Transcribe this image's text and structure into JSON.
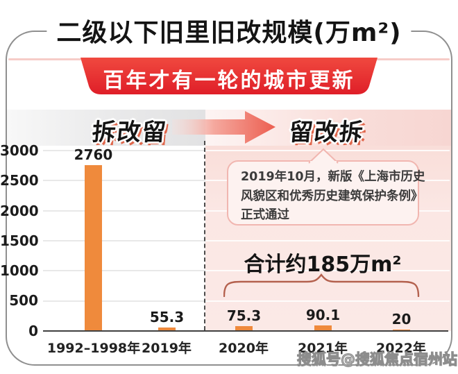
{
  "title": "二级以下旧里旧改规模(万m²)",
  "banner": "百年才有一轮的城市更新",
  "phases": {
    "left": "拆改留",
    "right": "留改拆"
  },
  "annotation": {
    "line1": "2019年10月，新版《上海市历史",
    "line2": "风貌区和优秀历史建筑保护条例》",
    "line3": "正式通过"
  },
  "total_label": "合计约185万m²",
  "watermark": "搜狐号@搜狐焦点宿州站",
  "chart_data": {
    "type": "bar",
    "title": "二级以下旧里旧改规模(万m²)",
    "categories": [
      "1992–1998年",
      "2019年",
      "2020年",
      "2021年",
      "2022年"
    ],
    "values": [
      2760,
      55.3,
      75.3,
      90.1,
      20
    ],
    "value_labels": [
      "2760",
      "55.3",
      "75.3",
      "90.1",
      "20"
    ],
    "yticks": [
      3000,
      2500,
      2000,
      1500,
      1000,
      500,
      0
    ],
    "ylim": [
      0,
      3000
    ],
    "xlabel": "",
    "ylabel": "",
    "grid": true,
    "legend": "none",
    "bar_color": "#ef8a3c",
    "annotations": [
      "拆改留 → 留改拆",
      "2019年10月，新版《上海市历史风貌区和优秀历史建筑保护条例》正式通过",
      "合计约185万m² (2020-2022年)"
    ]
  },
  "colors": {
    "banner_red": "#e2222b",
    "bar_orange": "#ef8a3c",
    "pink_background": "#fbe8e5",
    "gray_band": "#e5e5e6",
    "callout_border": "#f1b6b0",
    "brace": "#b4614e",
    "axis": "#404040",
    "card_border": "#8f8f8f",
    "era_shadow": "#e0664b"
  }
}
